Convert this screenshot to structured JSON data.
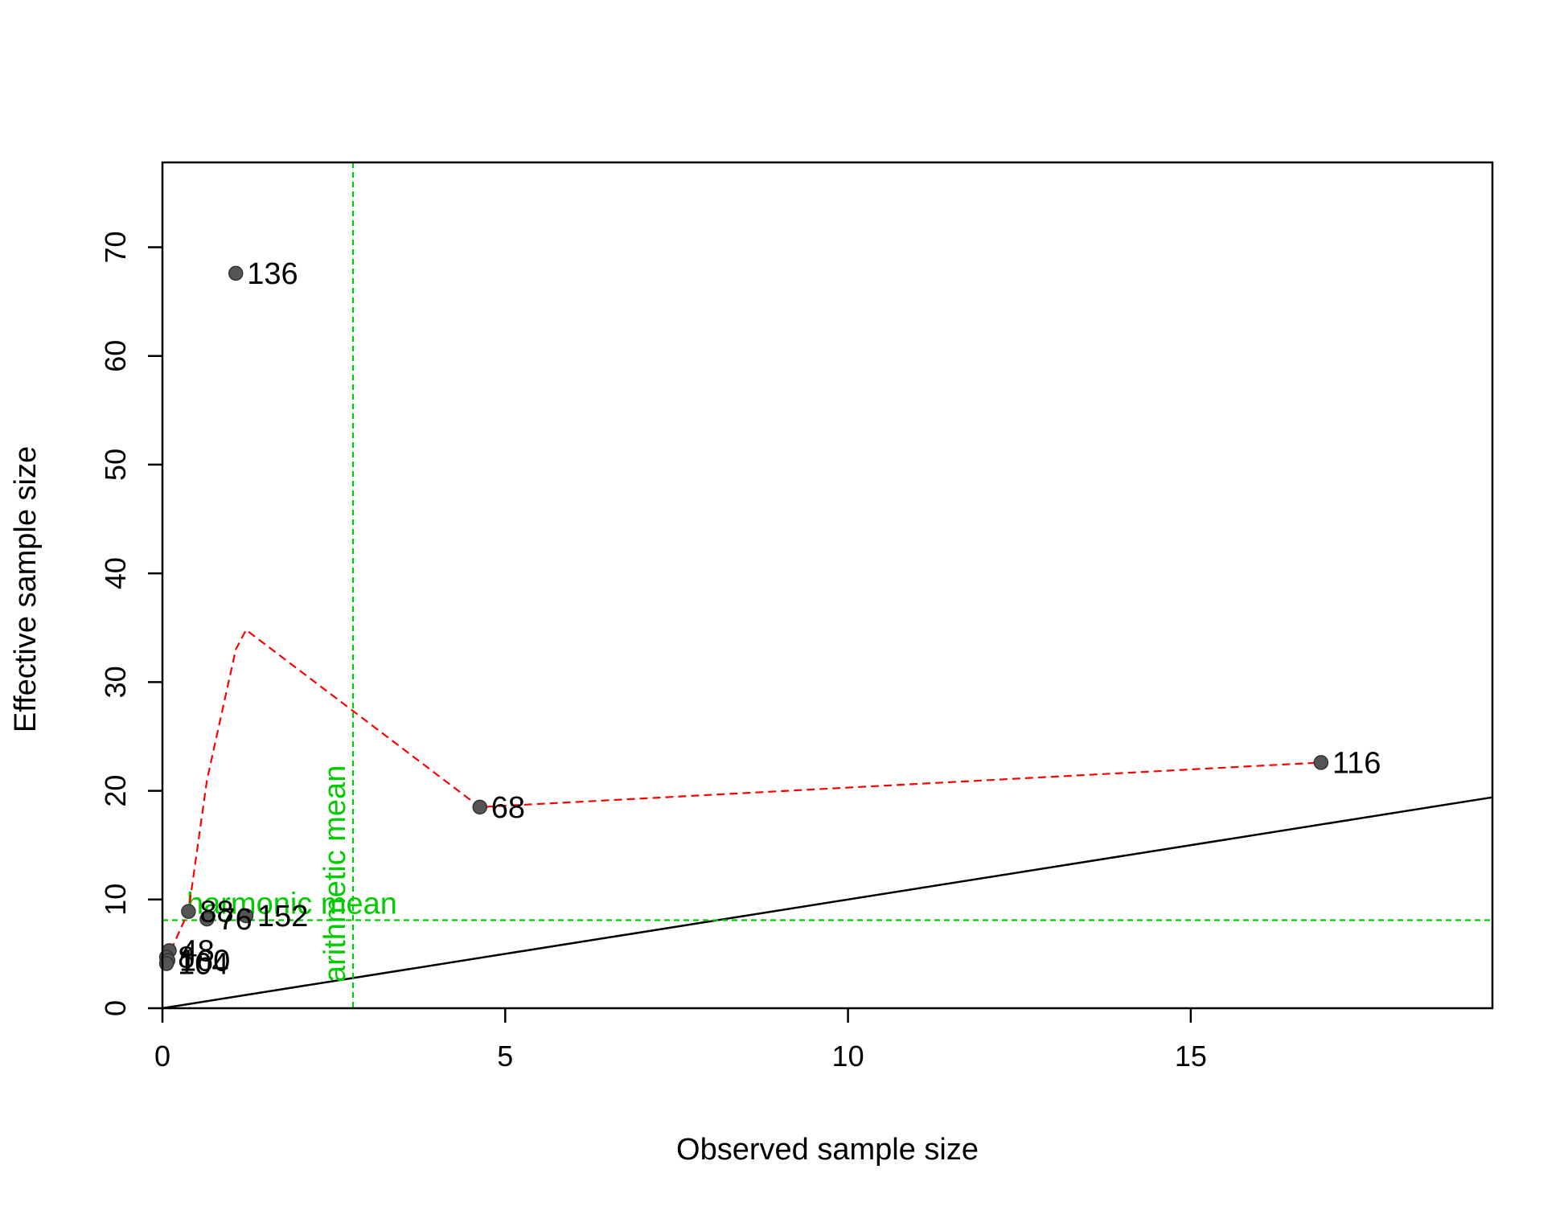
{
  "chart_data": {
    "type": "scatter",
    "xlabel": "Observed sample size",
    "ylabel": "Effective sample size",
    "xlim": [
      0,
      19.4
    ],
    "ylim": [
      0,
      77.8
    ],
    "x_ticks": [
      0,
      5,
      10,
      15
    ],
    "y_ticks": [
      0,
      10,
      20,
      30,
      40,
      50,
      60,
      70
    ],
    "grid": false,
    "legend": "none",
    "colors": {
      "points": "#555555",
      "fit": "#ff0000",
      "identity": "#000000",
      "reference": "#00cc00"
    },
    "points": [
      {
        "label": "136",
        "x": 1.07,
        "y": 67.6
      },
      {
        "label": "116",
        "x": 16.9,
        "y": 22.6
      },
      {
        "label": "68",
        "x": 4.63,
        "y": 18.5
      },
      {
        "label": "88",
        "x": 0.38,
        "y": 8.9
      },
      {
        "label": "76",
        "x": 0.65,
        "y": 8.2
      },
      {
        "label": "152",
        "x": 1.22,
        "y": 8.5
      },
      {
        "label": "48",
        "x": 0.1,
        "y": 5.3
      },
      {
        "label": "8",
        "x": 0.06,
        "y": 4.7
      },
      {
        "label": "160",
        "x": 0.08,
        "y": 4.4
      },
      {
        "label": "104",
        "x": 0.06,
        "y": 4.1
      }
    ],
    "smooth_line": {
      "x": [
        0.06,
        0.1,
        0.38,
        0.65,
        1.07,
        1.22,
        4.63,
        16.9
      ],
      "y": [
        4.2,
        5.0,
        8.9,
        21.0,
        33.0,
        34.8,
        18.5,
        22.6
      ]
    },
    "identity_line": {
      "slope": 1,
      "intercept": 0
    },
    "reference_lines": {
      "arithmetic_mean": {
        "axis": "x",
        "value": 2.78,
        "label": "arithmetic mean"
      },
      "harmonic_mean": {
        "axis": "y",
        "value": 8.1,
        "label": "harmonic mean"
      }
    }
  }
}
